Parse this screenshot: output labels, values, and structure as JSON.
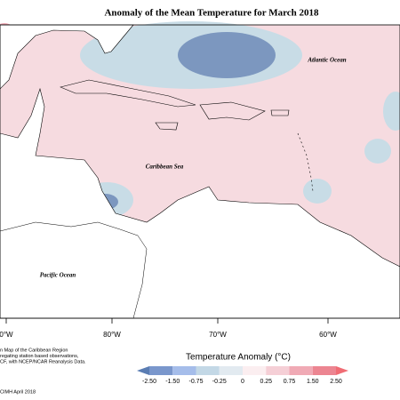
{
  "title": "Anomaly of the Mean Temperature for March 2018",
  "labels": [
    "Atlantic Ocean",
    "Caribbean Sea",
    "Pacific Ocean"
  ],
  "longitudes": [
    "0°W",
    "80°W",
    "70°W",
    "60°W"
  ],
  "notes": [
    "n Map of the Caribbean Region",
    "regating station based observations,",
    "CF, with NCEP/NCAR Reanalysis Data.",
    "CIMH April 2018"
  ],
  "legend": {
    "title": "Temperature Anomaly (°C)",
    "ticks": [
      "-2.50",
      "-1.50",
      "-0.75",
      "-0.25",
      "0",
      "0.25",
      "0.75",
      "1.50",
      "2.50"
    ],
    "colors": [
      "#5a7db3",
      "#7a97cc",
      "#a5bdea",
      "#c3d8e6",
      "#e2eaf0",
      "#fbeef0",
      "#f5cfd6",
      "#f0aab5",
      "#ec8591",
      "#f06c74"
    ]
  }
}
